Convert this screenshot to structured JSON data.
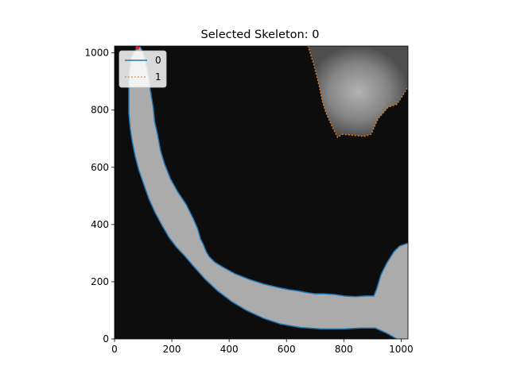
{
  "chart_data": {
    "type": "image_with_contours",
    "title": "Selected Skeleton: 0",
    "xlabel": "",
    "ylabel": "",
    "xlim": [
      0,
      1024
    ],
    "ylim": [
      1024,
      0
    ],
    "x_ticks": [
      0,
      200,
      400,
      600,
      800,
      1000
    ],
    "y_ticks": [
      0,
      200,
      400,
      600,
      800,
      1000
    ],
    "legend": {
      "placement": "top-left",
      "entries": [
        {
          "name": "0",
          "style": "solid",
          "color": "#1f77b4"
        },
        {
          "name": "1",
          "style": "dotted",
          "color": "#ff7f0e"
        }
      ]
    },
    "series": [
      {
        "name": "0",
        "color": "#1f77b4",
        "style": "solid",
        "points": [
          [
            1024,
            335
          ],
          [
            995,
            325
          ],
          [
            975,
            305
          ],
          [
            950,
            265
          ],
          [
            930,
            225
          ],
          [
            915,
            175
          ],
          [
            905,
            150
          ],
          [
            875,
            150
          ],
          [
            840,
            148
          ],
          [
            800,
            150
          ],
          [
            770,
            155
          ],
          [
            730,
            158
          ],
          [
            700,
            158
          ],
          [
            670,
            162
          ],
          [
            640,
            168
          ],
          [
            610,
            172
          ],
          [
            570,
            180
          ],
          [
            520,
            192
          ],
          [
            470,
            208
          ],
          [
            420,
            228
          ],
          [
            380,
            250
          ],
          [
            350,
            268
          ],
          [
            330,
            288
          ],
          [
            320,
            305
          ],
          [
            310,
            330
          ],
          [
            300,
            350
          ],
          [
            290,
            385
          ],
          [
            275,
            420
          ],
          [
            250,
            470
          ],
          [
            220,
            515
          ],
          [
            195,
            560
          ],
          [
            175,
            610
          ],
          [
            160,
            660
          ],
          [
            150,
            715
          ],
          [
            140,
            760
          ],
          [
            135,
            810
          ],
          [
            125,
            870
          ],
          [
            118,
            920
          ],
          [
            110,
            960
          ],
          [
            100,
            1000
          ],
          [
            90,
            1020
          ],
          [
            80,
            1018
          ],
          [
            70,
            1005
          ],
          [
            60,
            985
          ],
          [
            55,
            955
          ],
          [
            50,
            905
          ],
          [
            50,
            850
          ],
          [
            50,
            790
          ],
          [
            55,
            735
          ],
          [
            62,
            690
          ],
          [
            72,
            640
          ],
          [
            85,
            590
          ],
          [
            102,
            540
          ],
          [
            120,
            490
          ],
          [
            140,
            445
          ],
          [
            165,
            398
          ],
          [
            190,
            355
          ],
          [
            215,
            322
          ],
          [
            245,
            290
          ],
          [
            275,
            255
          ],
          [
            315,
            210
          ],
          [
            360,
            168
          ],
          [
            410,
            130
          ],
          [
            460,
            100
          ],
          [
            520,
            72
          ],
          [
            580,
            52
          ],
          [
            650,
            40
          ],
          [
            720,
            35
          ],
          [
            800,
            35
          ],
          [
            860,
            38
          ],
          [
            910,
            38
          ],
          [
            950,
            20
          ],
          [
            985,
            0
          ]
        ]
      },
      {
        "name": "1",
        "color": "#ff7f0e",
        "style": "dotted",
        "points": [
          [
            675,
            1024
          ],
          [
            695,
            960
          ],
          [
            715,
            880
          ],
          [
            725,
            830
          ],
          [
            738,
            790
          ],
          [
            760,
            740
          ],
          [
            778,
            705
          ],
          [
            795,
            715
          ],
          [
            830,
            712
          ],
          [
            870,
            708
          ],
          [
            895,
            715
          ],
          [
            920,
            770
          ],
          [
            955,
            810
          ],
          [
            985,
            820
          ],
          [
            1005,
            850
          ],
          [
            1024,
            880
          ]
        ]
      }
    ],
    "marker": {
      "x": 80,
      "y": 1018,
      "color": "#d62728"
    }
  }
}
